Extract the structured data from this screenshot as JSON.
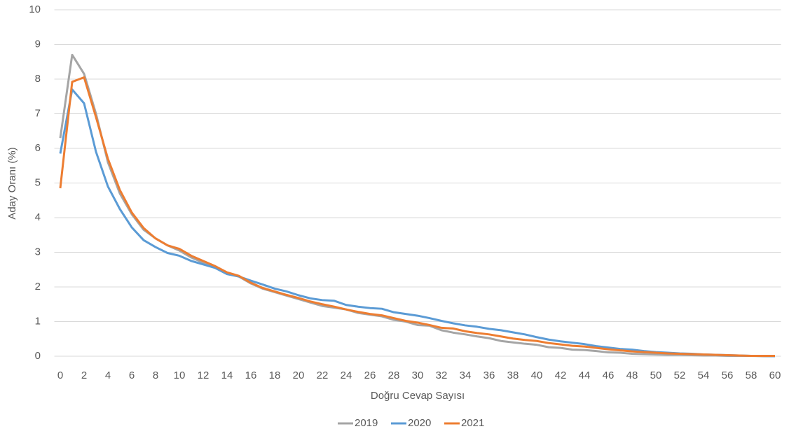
{
  "chart_data": {
    "type": "line",
    "x": [
      0,
      1,
      2,
      3,
      4,
      5,
      6,
      7,
      8,
      9,
      10,
      11,
      12,
      13,
      14,
      15,
      16,
      17,
      18,
      19,
      20,
      21,
      22,
      23,
      24,
      25,
      26,
      27,
      28,
      29,
      30,
      31,
      32,
      33,
      34,
      35,
      36,
      37,
      38,
      39,
      40,
      41,
      42,
      43,
      44,
      45,
      46,
      47,
      48,
      49,
      50,
      51,
      52,
      53,
      54,
      55,
      56,
      57,
      58,
      59,
      60
    ],
    "series": [
      {
        "name": "2019",
        "color": "#a5a5a5",
        "values": [
          6.3,
          8.7,
          8.15,
          7.0,
          5.6,
          4.7,
          4.1,
          3.65,
          3.4,
          3.2,
          3.05,
          2.85,
          2.7,
          2.6,
          2.4,
          2.3,
          2.1,
          1.95,
          1.85,
          1.75,
          1.65,
          1.55,
          1.45,
          1.4,
          1.35,
          1.25,
          1.2,
          1.15,
          1.05,
          1.0,
          0.9,
          0.88,
          0.75,
          0.68,
          0.63,
          0.57,
          0.52,
          0.44,
          0.4,
          0.36,
          0.33,
          0.26,
          0.24,
          0.19,
          0.18,
          0.15,
          0.11,
          0.1,
          0.07,
          0.06,
          0.05,
          0.04,
          0.04,
          0.03,
          0.02,
          0.02,
          0.01,
          0.01,
          0.01,
          0,
          0
        ]
      },
      {
        "name": "2020",
        "color": "#5b9bd5",
        "values": [
          5.85,
          7.7,
          7.3,
          5.9,
          4.9,
          4.25,
          3.72,
          3.35,
          3.15,
          2.98,
          2.9,
          2.75,
          2.65,
          2.55,
          2.37,
          2.3,
          2.18,
          2.07,
          1.95,
          1.87,
          1.76,
          1.67,
          1.62,
          1.6,
          1.48,
          1.43,
          1.39,
          1.37,
          1.27,
          1.22,
          1.17,
          1.1,
          1.02,
          0.95,
          0.89,
          0.85,
          0.79,
          0.75,
          0.69,
          0.63,
          0.55,
          0.48,
          0.43,
          0.39,
          0.35,
          0.29,
          0.25,
          0.21,
          0.19,
          0.15,
          0.12,
          0.1,
          0.08,
          0.07,
          0.05,
          0.04,
          0.03,
          0.02,
          0.01,
          0.01,
          0
        ]
      },
      {
        "name": "2021",
        "color": "#ed7d31",
        "values": [
          4.85,
          7.92,
          8.05,
          6.9,
          5.7,
          4.8,
          4.15,
          3.7,
          3.4,
          3.2,
          3.1,
          2.9,
          2.75,
          2.6,
          2.42,
          2.32,
          2.12,
          1.97,
          1.87,
          1.77,
          1.68,
          1.58,
          1.5,
          1.43,
          1.35,
          1.28,
          1.22,
          1.18,
          1.1,
          1.02,
          0.97,
          0.9,
          0.82,
          0.8,
          0.72,
          0.67,
          0.63,
          0.57,
          0.51,
          0.47,
          0.44,
          0.38,
          0.34,
          0.3,
          0.28,
          0.24,
          0.2,
          0.17,
          0.14,
          0.12,
          0.1,
          0.08,
          0.07,
          0.06,
          0.05,
          0.04,
          0.03,
          0.02,
          0.01,
          0.01,
          0.01
        ]
      }
    ],
    "x_label": "Doğru Cevap Sayısı",
    "y_label": "Aday Oranı (%)",
    "xlim": [
      0,
      60
    ],
    "xticks": [
      0,
      2,
      4,
      6,
      8,
      10,
      12,
      14,
      16,
      18,
      20,
      22,
      24,
      26,
      28,
      30,
      32,
      34,
      36,
      38,
      40,
      42,
      44,
      46,
      48,
      50,
      52,
      54,
      56,
      58,
      60
    ],
    "ylim": [
      0,
      10
    ],
    "yticks": [
      0,
      1,
      2,
      3,
      4,
      5,
      6,
      7,
      8,
      9,
      10
    ],
    "grid": true,
    "legend": "bottom"
  }
}
